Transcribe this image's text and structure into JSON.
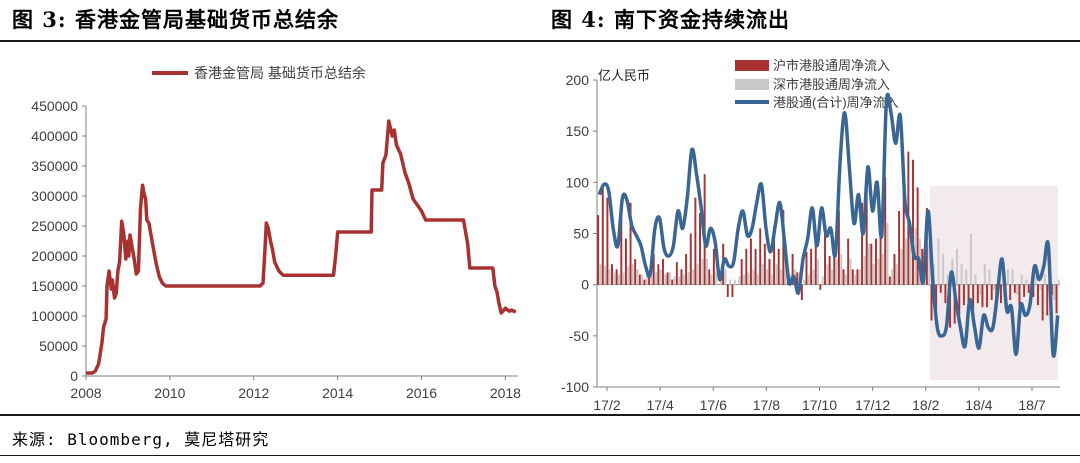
{
  "figure3": {
    "title": "图 3:  香港金管局基础货币总结余",
    "colors": {
      "line": "#a83232",
      "axis": "#808080"
    },
    "chart_data": {
      "type": "line",
      "title": "",
      "legend": [
        "香港金管局 基础货币总结余"
      ],
      "legend_position": "top",
      "x_ticks": [
        "2008",
        "2010",
        "2012",
        "2014",
        "2016",
        "2018"
      ],
      "xlim": [
        2008.0,
        2018.3
      ],
      "y_ticks": [
        "0",
        "50000",
        "100000",
        "150000",
        "200000",
        "250000",
        "300000",
        "350000",
        "400000",
        "450000"
      ],
      "ylim": [
        0,
        450000
      ],
      "grid": false,
      "series": [
        {
          "name": "香港金管局 基础货币总结余",
          "x": [
            2008.0,
            2008.15,
            2008.22,
            2008.3,
            2008.38,
            2008.42,
            2008.48,
            2008.5,
            2008.55,
            2008.6,
            2008.63,
            2008.68,
            2008.72,
            2008.76,
            2008.8,
            2008.85,
            2008.9,
            2008.95,
            2009.0,
            2009.02,
            2009.05,
            2009.1,
            2009.15,
            2009.2,
            2009.25,
            2009.3,
            2009.35,
            2009.38,
            2009.42,
            2009.45,
            2009.5,
            2009.55,
            2009.6,
            2009.68,
            2009.75,
            2009.82,
            2009.9,
            2010.0,
            2010.5,
            2011.0,
            2011.5,
            2011.9,
            2012.05,
            2012.15,
            2012.22,
            2012.27,
            2012.3,
            2012.35,
            2012.4,
            2012.45,
            2012.5,
            2012.6,
            2012.7,
            2012.8,
            2012.9,
            2013.0,
            2013.5,
            2013.9,
            2013.95,
            2014.0,
            2014.4,
            2014.5,
            2014.8,
            2014.82,
            2015.05,
            2015.08,
            2015.15,
            2015.22,
            2015.3,
            2015.35,
            2015.4,
            2015.5,
            2015.6,
            2015.7,
            2015.8,
            2015.9,
            2016.0,
            2016.1,
            2016.2,
            2016.3,
            2016.5,
            2016.8,
            2017.0,
            2017.1,
            2017.15,
            2017.3,
            2017.6,
            2017.7,
            2017.75,
            2017.8,
            2017.85,
            2017.9,
            2018.0,
            2018.05,
            2018.1,
            2018.15,
            2018.2,
            2018.25
          ],
          "values": [
            5000,
            5000,
            8000,
            20000,
            55000,
            82000,
            95000,
            150000,
            175000,
            145000,
            160000,
            130000,
            138000,
            175000,
            190000,
            258000,
            238000,
            195000,
            225000,
            200000,
            235000,
            215000,
            195000,
            170000,
            175000,
            280000,
            318000,
            305000,
            295000,
            260000,
            255000,
            235000,
            215000,
            185000,
            165000,
            155000,
            150000,
            150000,
            150000,
            150000,
            150000,
            150000,
            150000,
            150000,
            155000,
            215000,
            255000,
            245000,
            225000,
            210000,
            190000,
            175000,
            168000,
            168000,
            168000,
            168000,
            168000,
            168000,
            200000,
            240000,
            240000,
            240000,
            240000,
            310000,
            310000,
            355000,
            368000,
            425000,
            400000,
            410000,
            385000,
            370000,
            340000,
            320000,
            295000,
            285000,
            275000,
            260000,
            260000,
            260000,
            260000,
            260000,
            260000,
            220000,
            180000,
            180000,
            180000,
            180000,
            150000,
            140000,
            120000,
            105000,
            113000,
            110000,
            108000,
            110000,
            108000,
            107000
          ]
        }
      ]
    }
  },
  "figure4": {
    "title": "图 4:  南下资金持续流出",
    "colors": {
      "bar_sh": "#a83232",
      "bar_sz": "#c8c8c8",
      "line": "#3a6695",
      "shade": "#f3eaee",
      "axis": "#808080"
    },
    "chart_data": {
      "type": "bar",
      "unit_label": "亿人民币",
      "legend": [
        "沪市港股通周净流入",
        "深市港股通周净流入",
        "港股通(合计)周净流入"
      ],
      "legend_position": "top",
      "x_ticks": [
        "17/2",
        "17/4",
        "17/6",
        "17/8",
        "17/10",
        "17/12",
        "18/2",
        "18/4",
        "18/7"
      ],
      "y_ticks": [
        "200",
        "150",
        "100",
        "50",
        "0",
        "-50",
        "-100"
      ],
      "ylim": [
        -100,
        200
      ],
      "grid": false,
      "shaded_region": "18/2 – 18/8",
      "series": [
        {
          "name": "沪市港股通周净流入",
          "type": "bar",
          "values": [
            68,
            95,
            85,
            20,
            15,
            65,
            45,
            80,
            25,
            10,
            5,
            10,
            30,
            20,
            25,
            12,
            5,
            22,
            15,
            30,
            50,
            85,
            70,
            108,
            15,
            35,
            0,
            40,
            -12,
            -12,
            0,
            25,
            35,
            45,
            35,
            55,
            40,
            25,
            50,
            35,
            73,
            10,
            30,
            12,
            -15,
            32,
            35,
            45,
            -5,
            60,
            28,
            40,
            72,
            15,
            45,
            15,
            15,
            80,
            110,
            40,
            45,
            60,
            105,
            8,
            30,
            72,
            105,
            130,
            122,
            95,
            35,
            75,
            -35,
            -32,
            -8,
            -18,
            -42,
            -38,
            -30,
            -20,
            -28,
            -25,
            -18,
            -22,
            -22,
            -15,
            -25,
            -18,
            -10,
            -15,
            -8,
            -25,
            -12,
            -8,
            -12,
            -20,
            -35,
            -30,
            -10,
            -28
          ]
        },
        {
          "name": "深市港股通周净流入",
          "type": "bar",
          "values": [
            20,
            18,
            15,
            12,
            10,
            12,
            18,
            20,
            15,
            10,
            8,
            10,
            12,
            15,
            10,
            12,
            8,
            8,
            10,
            12,
            15,
            20,
            25,
            25,
            10,
            12,
            8,
            15,
            5,
            5,
            8,
            10,
            12,
            15,
            10,
            20,
            15,
            10,
            20,
            15,
            30,
            10,
            15,
            12,
            5,
            10,
            15,
            25,
            8,
            20,
            15,
            25,
            30,
            10,
            25,
            10,
            15,
            28,
            40,
            20,
            25,
            30,
            60,
            15,
            20,
            35,
            45,
            50,
            55,
            45,
            25,
            40,
            20,
            45,
            30,
            10,
            25,
            35,
            20,
            15,
            50,
            10,
            -10,
            20,
            15,
            -5,
            10,
            20,
            15,
            15,
            -10,
            10,
            5,
            -5,
            20,
            -5,
            10,
            15,
            -15,
            5
          ]
        },
        {
          "name": "港股通(合计)周净流入",
          "type": "line",
          "values": [
            88,
            98,
            92,
            55,
            38,
            85,
            82,
            58,
            48,
            38,
            18,
            10,
            55,
            65,
            35,
            28,
            38,
            72,
            55,
            85,
            132,
            108,
            75,
            38,
            55,
            42,
            5,
            25,
            18,
            22,
            55,
            72,
            48,
            55,
            80,
            98,
            55,
            32,
            58,
            80,
            42,
            2,
            8,
            -8,
            25,
            45,
            75,
            38,
            75,
            48,
            55,
            30,
            120,
            168,
            115,
            60,
            88,
            50,
            115,
            72,
            100,
            48,
            178,
            168,
            138,
            165,
            82,
            60,
            28,
            25,
            3,
            72,
            5,
            -42,
            -50,
            -40,
            12,
            -15,
            -42,
            -60,
            -15,
            -40,
            -62,
            -30,
            -42,
            -42,
            -8,
            25,
            -25,
            -22,
            -68,
            -20,
            -30,
            -20,
            18,
            5,
            18,
            38,
            -68,
            -30
          ]
        }
      ]
    }
  },
  "source_note": "来源: Bloomberg, 莫尼塔研究"
}
